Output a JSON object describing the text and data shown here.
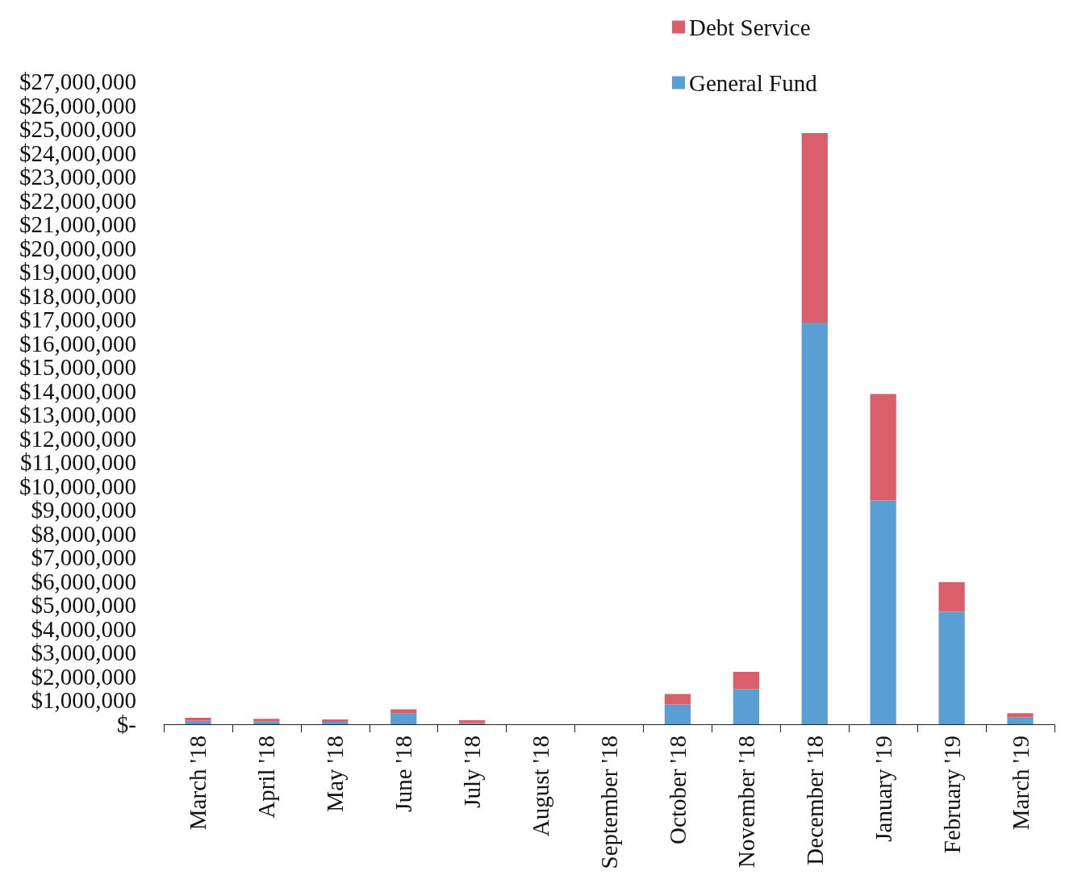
{
  "chart_data": {
    "type": "bar",
    "stacked": true,
    "legend": "top right",
    "grid": false,
    "categories": [
      "March '18",
      "April '18",
      "May '18",
      "June '18",
      "July '18",
      "August '18",
      "September '18",
      "October '18",
      "November '18",
      "December '18",
      "January '19",
      "February '19",
      "March '19"
    ],
    "series": [
      {
        "name": "General Fund",
        "color": "#5a9fd4",
        "values": [
          150000,
          120000,
          100000,
          450000,
          50000,
          null,
          null,
          830000,
          1470000,
          16870000,
          9400000,
          4730000,
          300000
        ]
      },
      {
        "name": "Debt Service",
        "color": "#d9606a",
        "values": [
          120000,
          110000,
          100000,
          180000,
          120000,
          null,
          null,
          440000,
          730000,
          7960000,
          4470000,
          1240000,
          170000
        ]
      }
    ],
    "ylim": [
      0,
      27000000
    ],
    "yticks": [
      {
        "value": 0,
        "label": "$-"
      },
      {
        "value": 1000000,
        "label": "$1,000,000"
      },
      {
        "value": 2000000,
        "label": "$2,000,000"
      },
      {
        "value": 3000000,
        "label": "$3,000,000"
      },
      {
        "value": 4000000,
        "label": "$4,000,000"
      },
      {
        "value": 5000000,
        "label": "$5,000,000"
      },
      {
        "value": 6000000,
        "label": "$6,000,000"
      },
      {
        "value": 7000000,
        "label": "$7,000,000"
      },
      {
        "value": 8000000,
        "label": "$8,000,000"
      },
      {
        "value": 9000000,
        "label": "$9,000,000"
      },
      {
        "value": 10000000,
        "label": "$10,000,000"
      },
      {
        "value": 11000000,
        "label": "$11,000,000"
      },
      {
        "value": 12000000,
        "label": "$12,000,000"
      },
      {
        "value": 13000000,
        "label": "$13,000,000"
      },
      {
        "value": 14000000,
        "label": "$14,000,000"
      },
      {
        "value": 15000000,
        "label": "$15,000,000"
      },
      {
        "value": 16000000,
        "label": "$16,000,000"
      },
      {
        "value": 17000000,
        "label": "$17,000,000"
      },
      {
        "value": 18000000,
        "label": "$18,000,000"
      },
      {
        "value": 19000000,
        "label": "$19,000,000"
      },
      {
        "value": 20000000,
        "label": "$20,000,000"
      },
      {
        "value": 21000000,
        "label": "$21,000,000"
      },
      {
        "value": 22000000,
        "label": "$22,000,000"
      },
      {
        "value": 23000000,
        "label": "$23,000,000"
      },
      {
        "value": 24000000,
        "label": "$24,000,000"
      },
      {
        "value": 25000000,
        "label": "$25,000,000"
      },
      {
        "value": 26000000,
        "label": "$26,000,000"
      },
      {
        "value": 27000000,
        "label": "$27,000,000"
      }
    ]
  }
}
